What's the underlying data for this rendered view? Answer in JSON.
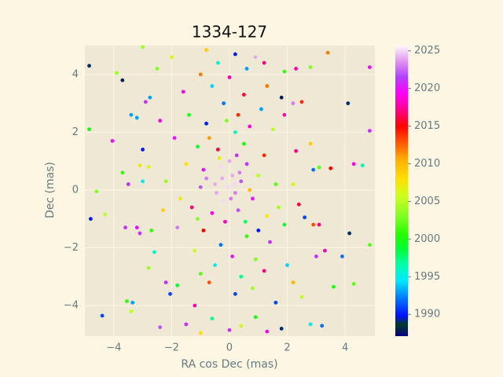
{
  "chart_data": {
    "type": "scatter",
    "title": "1334-127",
    "x_label": "RA cos Dec (mas)",
    "y_label": "Dec (mas)",
    "x": [
      -4.85,
      -3.7,
      3.4,
      4.85,
      4.1,
      4.85,
      -4.85,
      -4.8,
      -4.4,
      -3.6,
      4.3,
      4.6,
      4.85,
      4.3,
      3.2,
      2.8,
      -2.4,
      -1.0,
      4.15,
      3.9,
      3.1,
      -4.6,
      -4.3,
      -4.05,
      -3.9,
      -3.4,
      -3.2,
      -3.0,
      -2.9,
      -2.75,
      -2.5,
      -2.4,
      -3.55,
      -3.4,
      -3.35,
      -3.2,
      -3.1,
      -2.8,
      -2.2,
      -2.05,
      -2.6,
      -2.7,
      -2.8,
      -3.1,
      -3.7,
      -3.5,
      -3.0,
      2.5,
      2.2,
      2.3,
      2.8,
      2.9,
      3.1,
      3.5,
      2.6,
      2.9,
      3.3,
      3.0,
      3.6,
      2.5,
      2.2,
      2.0,
      1.9,
      1.8,
      1.9,
      2.3,
      2.8,
      1.2,
      -0.8,
      0.2,
      0.9,
      -1.0,
      -2.0,
      -3.0,
      0.0,
      0.4,
      1.3,
      1.8,
      -0.6,
      -1.5,
      0.9,
      -1.2,
      0.1,
      -0.3,
      0.2,
      -0.5,
      0.4,
      -0.2,
      0.6,
      -0.8,
      0.0,
      0.3,
      -0.6,
      0.8,
      -1.0,
      1.0,
      -0.4,
      0.5,
      -0.7,
      0.2,
      -0.1,
      0.7,
      -1.1,
      1.2,
      -1.3,
      1.3,
      -0.9,
      0.6,
      -0.3,
      0.1,
      -0.5,
      0.9,
      -1.2,
      1.4,
      0.4,
      -0.7,
      0.2,
      0.8,
      -1.5,
      1.6,
      -1.7,
      1.7,
      -0.2,
      0.5,
      -0.6,
      0.0,
      -1.4,
      1.1,
      -1.9,
      1.5,
      -1.8,
      1.9,
      -0.05,
      0.15,
      -0.25,
      0.35,
      -0.45,
      0.05,
      0.25,
      -0.15,
      0.7,
      -0.9,
      0.55,
      -0.35,
      1.0,
      -1.1,
      0.3,
      -0.8,
      1.2,
      -1.0,
      2.2,
      -2.2,
      2.4,
      -2.3,
      1.3,
      -1.6,
      -0.4,
      0.6,
      1.6,
      -1.8
    ],
    "y": [
      4.3,
      3.8,
      4.75,
      4.25,
      3.0,
      2.05,
      2.1,
      -1.0,
      -4.35,
      -1.3,
      0.9,
      0.85,
      -1.9,
      -3.25,
      -4.7,
      -4.65,
      -4.75,
      -4.95,
      -1.5,
      -2.3,
      -1.2,
      -0.05,
      -0.85,
      1.7,
      4.05,
      2.6,
      2.5,
      1.4,
      3.05,
      3.2,
      4.2,
      2.4,
      -3.85,
      -4.2,
      -3.9,
      -1.3,
      -1.5,
      -2.7,
      -3.2,
      -3.6,
      -2.15,
      -1.4,
      0.8,
      0.85,
      0.6,
      0.2,
      0.3,
      3.05,
      3.0,
      1.35,
      1.6,
      0.7,
      0.78,
      0.75,
      -0.95,
      -1.2,
      -2.1,
      -2.3,
      -3.35,
      -3.7,
      -3.2,
      -2.6,
      2.6,
      3.2,
      4.1,
      4.2,
      4.25,
      4.4,
      4.85,
      4.7,
      4.6,
      4.0,
      4.6,
      4.95,
      -4.85,
      -4.7,
      -4.9,
      -4.8,
      -4.45,
      -4.65,
      -4.4,
      -4.0,
      0.5,
      0.8,
      -0.1,
      0.2,
      0.3,
      -0.4,
      0.9,
      0.4,
      1.0,
      -0.7,
      -0.8,
      -0.3,
      0.1,
      0.5,
      1.4,
      1.6,
      1.8,
      2.0,
      2.4,
      2.2,
      1.5,
      1.2,
      -0.6,
      -0.9,
      -1.4,
      -1.6,
      -1.9,
      -2.3,
      -2.6,
      -2.4,
      -2.1,
      -1.8,
      -3.0,
      -3.2,
      -3.6,
      -3.4,
      0.9,
      0.2,
      -0.3,
      -0.6,
      3.0,
      3.3,
      3.6,
      3.9,
      2.6,
      2.8,
      1.8,
      2.1,
      -1.3,
      -1.2,
      0.1,
      0.2,
      0.4,
      0.6,
      -0.1,
      -0.3,
      1.2,
      -1.1,
      0.0,
      0.7,
      -1.1,
      1.1,
      -1.4,
      -1.0,
      2.6,
      2.3,
      -2.8,
      -2.9,
      0.2,
      0.3,
      -0.5,
      -0.7,
      3.6,
      3.4,
      4.4,
      4.2,
      -3.9,
      -3.3
    ],
    "color_values": [
      1989,
      1988,
      2012,
      2020,
      1989,
      2021,
      2000,
      1990,
      1991,
      2021,
      2019,
      1996,
      2002,
      2002,
      1992,
      1995,
      2022,
      2008,
      1989,
      1992,
      2017,
      2003,
      2005,
      2020,
      2004,
      1993,
      1993,
      1990,
      2021,
      1993,
      2003,
      2019,
      2001,
      2005,
      1993,
      2020,
      2021,
      2004,
      2021,
      1991,
      1996,
      2001,
      2006,
      2007,
      2001,
      2021,
      1995,
      2014,
      2023,
      2017,
      2009,
      1992,
      2002,
      2015,
      1991,
      2013,
      2018,
      2021,
      2000,
      2005,
      2010,
      1994,
      2018,
      1988,
      2001,
      2018,
      2003,
      2017,
      2009,
      1990,
      2024,
      2012,
      2006,
      2004,
      2021,
      2006,
      2019,
      1989,
      1997,
      2021,
      2000,
      2018,
      2024,
      2025,
      2023,
      2024,
      2022,
      2025,
      2021,
      2023,
      2024,
      2022,
      2019,
      2020,
      2022,
      2005,
      2016,
      2000,
      2011,
      1996,
      2003,
      2019,
      1999,
      2014,
      2017,
      2008,
      2015,
      2001,
      1992,
      2020,
      1995,
      2003,
      2006,
      2021,
      1997,
      2013,
      1991,
      2004,
      2008,
      2002,
      2007,
      2004,
      1992,
      2016,
      1994,
      2018,
      2000,
      1993,
      2020,
      2005,
      2023,
      1999,
      2025,
      2025,
      2024,
      2023,
      2024,
      2023,
      2021,
      2018,
      2010,
      2020,
      1998,
      2007,
      1990,
      2003,
      2014,
      1990,
      2017,
      2002,
      2006,
      2004,
      2016,
      2009,
      2012,
      2019,
      1996,
      1993,
      1991,
      1999
    ],
    "xlim": [
      -5,
      5.03
    ],
    "ylim": [
      -5.06,
      5.0
    ],
    "xticks": [
      {
        "value": -4,
        "label": "−4"
      },
      {
        "value": -2,
        "label": "−2"
      },
      0,
      2,
      4
    ],
    "yticks": [
      {
        "value": -4,
        "label": "−4"
      },
      {
        "value": -2,
        "label": "−2"
      },
      0,
      2,
      4
    ],
    "colorbar": {
      "lim": [
        1987.1,
        2025.7
      ],
      "ticks": [
        1990,
        1995,
        2000,
        2005,
        2010,
        2015,
        2020,
        2025
      ]
    },
    "colormap": "gist_ncar",
    "grid": true
  }
}
